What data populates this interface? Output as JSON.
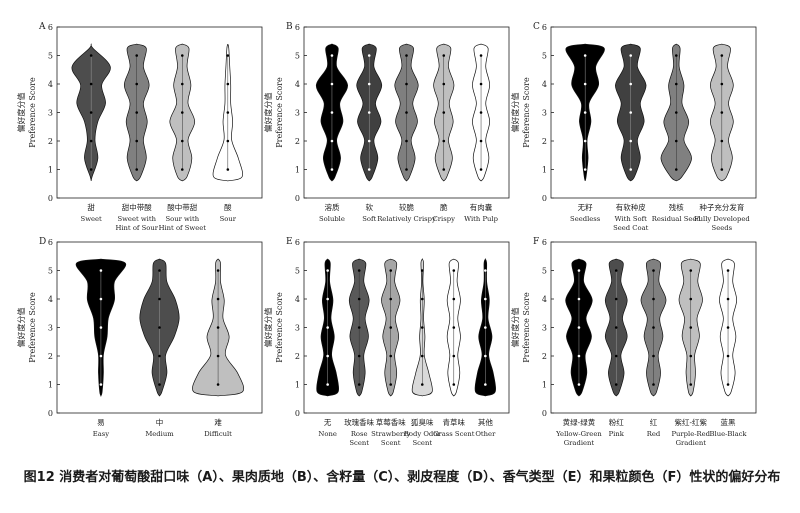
{
  "caption": "图12 消费者对葡萄酸甜口味（A）、果肉质地（B）、含籽量（C）、剥皮程度（D）、香气类型（E）和果粒颜色（F）性状的偏好分布",
  "chart_data": [
    {
      "type": "violin",
      "panel": "A",
      "ylabel_cn": "偏好度分值",
      "ylabel_en": "Preference Score",
      "ylim": [
        0,
        6
      ],
      "yticks": [
        "0",
        "1",
        "2",
        "3",
        "4",
        "5",
        "6"
      ],
      "categories": [
        {
          "cn": "甜",
          "en": [
            "Sweet"
          ],
          "fill": "#4d4d4d",
          "profile": [
            0.05,
            0.35,
            0.2,
            0.35,
            0.75,
            0.55,
            1.0,
            0.1
          ]
        },
        {
          "cn": "甜中带酸",
          "en": [
            "Sweet with",
            "Hint of Sour"
          ],
          "fill": "#808080",
          "profile": [
            0.2,
            0.5,
            0.35,
            0.55,
            0.35,
            0.65,
            0.35,
            0.5
          ]
        },
        {
          "cn": "酸中带甜",
          "en": [
            "Sour with",
            "Hint of Sweet"
          ],
          "fill": "#bfbfbf",
          "profile": [
            0.25,
            0.5,
            0.3,
            0.65,
            0.3,
            0.45,
            0.25,
            0.35
          ]
        },
        {
          "cn": "酸",
          "en": [
            "Sour"
          ],
          "fill": "#ffffff",
          "profile": [
            0.75,
            0.55,
            0.2,
            0.25,
            0.15,
            0.15,
            0.1,
            0.05
          ]
        }
      ]
    },
    {
      "type": "violin",
      "panel": "B",
      "ylabel_cn": "偏好度分值",
      "ylabel_en": "Preference Score",
      "ylim": [
        0,
        6
      ],
      "yticks": [
        "0",
        "1",
        "2",
        "3",
        "4",
        "5",
        "6"
      ],
      "categories": [
        {
          "cn": "溶质",
          "en": [
            "Soluble"
          ],
          "fill": "#000000",
          "profile": [
            0.2,
            0.55,
            0.3,
            0.7,
            0.5,
            1.0,
            0.3,
            0.4
          ]
        },
        {
          "cn": "软",
          "en": [
            "Soft"
          ],
          "fill": "#404040",
          "profile": [
            0.2,
            0.55,
            0.3,
            0.75,
            0.4,
            0.8,
            0.3,
            0.45
          ]
        },
        {
          "cn": "较脆",
          "en": [
            "Relatively Crispy"
          ],
          "fill": "#7f7f7f",
          "profile": [
            0.2,
            0.55,
            0.3,
            0.7,
            0.4,
            0.75,
            0.3,
            0.45
          ]
        },
        {
          "cn": "脆",
          "en": [
            "Crispy"
          ],
          "fill": "#bfbfbf",
          "profile": [
            0.2,
            0.55,
            0.3,
            0.6,
            0.35,
            0.65,
            0.3,
            0.45
          ]
        },
        {
          "cn": "有肉囊",
          "en": [
            "With Pulp"
          ],
          "fill": "#ffffff",
          "profile": [
            0.2,
            0.5,
            0.3,
            0.55,
            0.3,
            0.55,
            0.3,
            0.45
          ]
        }
      ]
    },
    {
      "type": "violin",
      "panel": "C",
      "ylabel_cn": "偏好度分值",
      "ylabel_en": "Preference Score",
      "ylim": [
        0,
        6
      ],
      "yticks": [
        "0",
        "1",
        "2",
        "3",
        "4",
        "5",
        "6"
      ],
      "categories": [
        {
          "cn": "无籽",
          "en": [
            "Seedless"
          ],
          "fill": "#000000",
          "profile": [
            0.05,
            0.15,
            0.1,
            0.3,
            0.2,
            0.7,
            0.55,
            1.0
          ]
        },
        {
          "cn": "有软种皮",
          "en": [
            "With Soft",
            "Seed Coat"
          ],
          "fill": "#404040",
          "profile": [
            0.2,
            0.5,
            0.35,
            0.7,
            0.5,
            0.8,
            0.35,
            0.5
          ]
        },
        {
          "cn": "残核",
          "en": [
            "Residual Seed"
          ],
          "fill": "#808080",
          "profile": [
            0.3,
            0.8,
            0.4,
            0.65,
            0.3,
            0.4,
            0.15,
            0.2
          ]
        },
        {
          "cn": "种子充分发育",
          "en": [
            "Fully Developed",
            "Seeds"
          ],
          "fill": "#bfbfbf",
          "profile": [
            0.25,
            0.55,
            0.35,
            0.6,
            0.35,
            0.6,
            0.3,
            0.45
          ]
        }
      ]
    },
    {
      "type": "violin",
      "panel": "D",
      "ylabel_cn": "偏好度分值",
      "ylabel_en": "Preference Score",
      "ylim": [
        0,
        6
      ],
      "yticks": [
        "0",
        "1",
        "2",
        "3",
        "4",
        "5",
        "6"
      ],
      "categories": [
        {
          "cn": "易",
          "en": [
            "Easy"
          ],
          "fill": "#000000",
          "profile": [
            0.05,
            0.1,
            0.1,
            0.25,
            0.3,
            0.55,
            0.55,
            1.0
          ]
        },
        {
          "cn": "中",
          "en": [
            "Medium"
          ],
          "fill": "#4d4d4d",
          "profile": [
            0.1,
            0.3,
            0.25,
            0.6,
            0.8,
            0.65,
            0.3,
            0.25
          ]
        },
        {
          "cn": "难",
          "en": [
            "Difficult"
          ],
          "fill": "#bfbfbf",
          "profile": [
            1.0,
            0.8,
            0.3,
            0.45,
            0.2,
            0.25,
            0.1,
            0.1
          ]
        }
      ]
    },
    {
      "type": "violin",
      "panel": "E",
      "ylabel_cn": "偏好度分值",
      "ylabel_en": "Preference Score",
      "ylim": [
        0,
        6
      ],
      "yticks": [
        "0",
        "1",
        "2",
        "3",
        "4",
        "5",
        "6"
      ],
      "categories": [
        {
          "cn": "无",
          "en": [
            "None"
          ],
          "fill": "#000000",
          "profile": [
            0.8,
            0.65,
            0.3,
            0.5,
            0.25,
            0.4,
            0.15,
            0.2
          ]
        },
        {
          "cn": "玫瑰香味",
          "en": [
            "Rose",
            "Scent"
          ],
          "fill": "#595959",
          "profile": [
            0.2,
            0.45,
            0.35,
            0.7,
            0.45,
            0.75,
            0.35,
            0.5
          ]
        },
        {
          "cn": "草莓香味",
          "en": [
            "Strawberry",
            "Scent"
          ],
          "fill": "#a6a6a6",
          "profile": [
            0.2,
            0.45,
            0.3,
            0.6,
            0.35,
            0.7,
            0.3,
            0.45
          ]
        },
        {
          "cn": "狐臭味",
          "en": [
            "Body Odor",
            "Scent"
          ],
          "fill": "#d9d9d9",
          "profile": [
            0.75,
            0.5,
            0.15,
            0.2,
            0.1,
            0.15,
            0.05,
            0.1
          ]
        },
        {
          "cn": "青草味",
          "en": [
            "Grass Scent"
          ],
          "fill": "#ffffff",
          "profile": [
            0.2,
            0.45,
            0.3,
            0.5,
            0.3,
            0.5,
            0.25,
            0.35
          ]
        },
        {
          "cn": "其他",
          "en": [
            "Other"
          ],
          "fill": "#000000",
          "profile": [
            0.75,
            0.6,
            0.25,
            0.5,
            0.2,
            0.3,
            0.1,
            0.1
          ]
        }
      ]
    },
    {
      "type": "violin",
      "panel": "F",
      "ylabel_cn": "偏好度分值",
      "ylabel_en": "Preference Score",
      "ylim": [
        0,
        6
      ],
      "yticks": [
        "0",
        "1",
        "2",
        "3",
        "4",
        "5",
        "6"
      ],
      "categories": [
        {
          "cn": "黄绿-绿黄",
          "en": [
            "Yellow-Green",
            "Gradient"
          ],
          "fill": "#000000",
          "profile": [
            0.2,
            0.5,
            0.4,
            0.8,
            0.45,
            0.85,
            0.3,
            0.45
          ]
        },
        {
          "cn": "粉红",
          "en": [
            "Pink"
          ],
          "fill": "#4d4d4d",
          "profile": [
            0.2,
            0.5,
            0.3,
            0.7,
            0.4,
            0.7,
            0.3,
            0.45
          ]
        },
        {
          "cn": "红",
          "en": [
            "Red"
          ],
          "fill": "#808080",
          "profile": [
            0.2,
            0.45,
            0.3,
            0.6,
            0.4,
            0.8,
            0.35,
            0.45
          ]
        },
        {
          "cn": "紫红-红紫",
          "en": [
            "Purple-Red",
            "Gradient"
          ],
          "fill": "#bfbfbf",
          "profile": [
            0.15,
            0.3,
            0.25,
            0.55,
            0.4,
            0.75,
            0.45,
            0.6
          ]
        },
        {
          "cn": "蓝黑",
          "en": [
            "Blue-Black"
          ],
          "fill": "#ffffff",
          "profile": [
            0.2,
            0.45,
            0.3,
            0.5,
            0.3,
            0.55,
            0.3,
            0.4
          ]
        }
      ]
    }
  ]
}
